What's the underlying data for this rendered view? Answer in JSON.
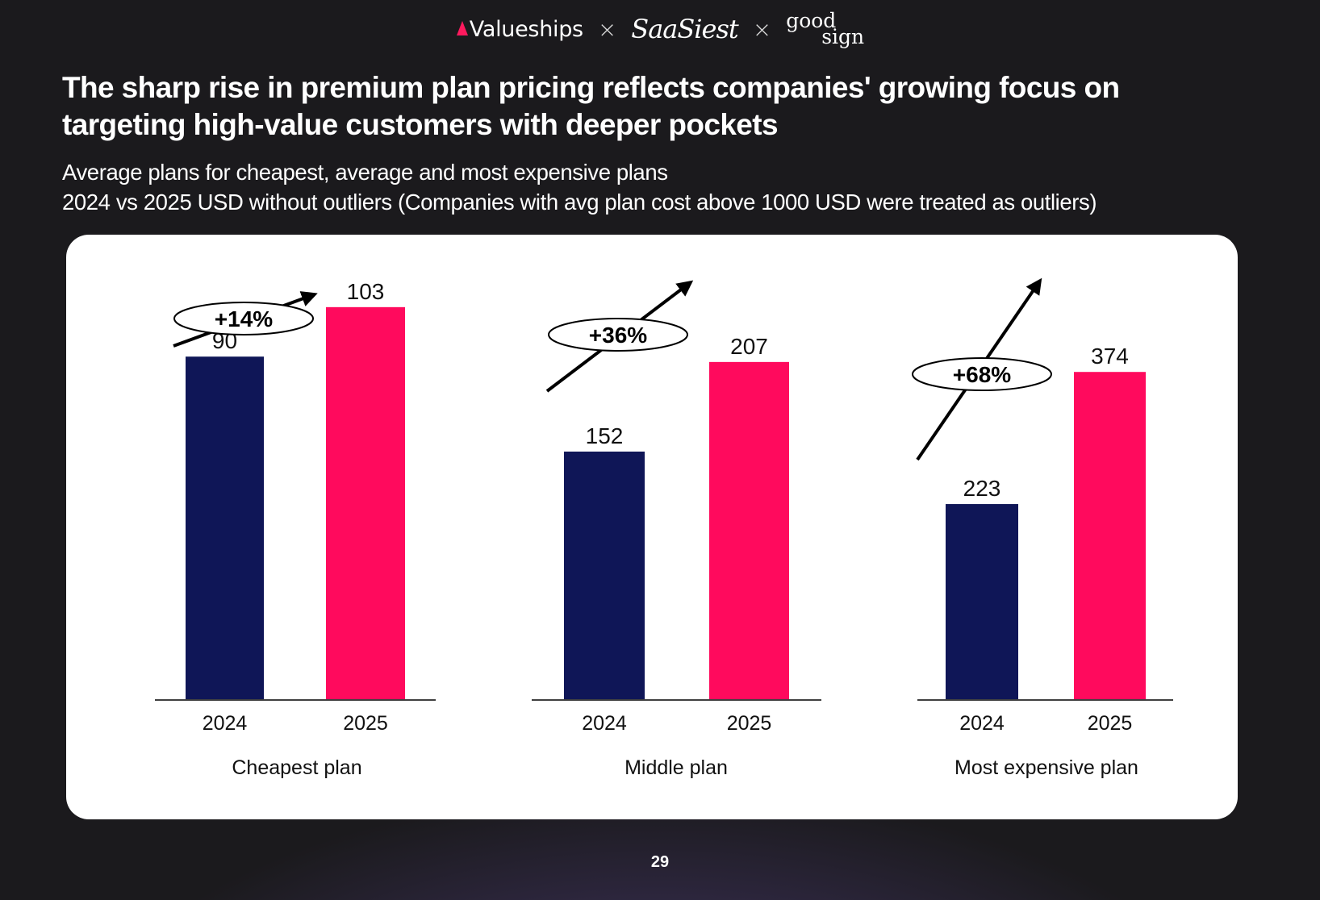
{
  "brand": {
    "valueships": "Valueships",
    "separator": "×",
    "saasiest": "SaaSiest",
    "goodsign_line1": "good",
    "goodsign_line2": "sign"
  },
  "headline": {
    "line1": "The sharp rise in premium plan pricing reflects companies' growing focus on",
    "line2": "targeting high-value customers with deeper pockets"
  },
  "subtitle": {
    "line1": "Average plans for cheapest, average and most expensive plans",
    "line2": "2024 vs 2025 USD without outliers (Companies with avg plan cost above 1000 USD were treated as outliers)"
  },
  "colors": {
    "year_2024": "#0f1657",
    "year_2025": "#ff0a5d",
    "brand_accent": "#ff1a5e",
    "card": "#ffffff",
    "background": "#1b1a1d"
  },
  "chart_data": [
    {
      "type": "bar",
      "title": "Cheapest plan",
      "categories": [
        "2024",
        "2025"
      ],
      "values": [
        90,
        103
      ],
      "change_label": "+14%"
    },
    {
      "type": "bar",
      "title": "Middle plan",
      "categories": [
        "2024",
        "2025"
      ],
      "values": [
        152,
        207
      ],
      "change_label": "+36%"
    },
    {
      "type": "bar",
      "title": "Most expensive plan",
      "categories": [
        "2024",
        "2025"
      ],
      "values": [
        223,
        374
      ],
      "change_label": "+68%"
    }
  ],
  "page_number": "29"
}
